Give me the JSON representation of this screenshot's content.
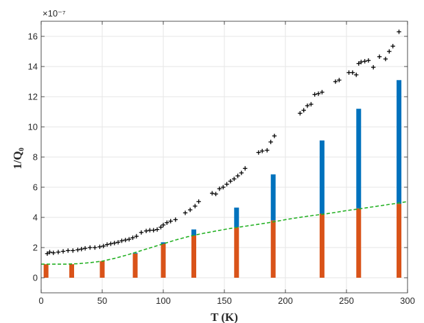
{
  "chart_data": {
    "type": "bar",
    "title": "",
    "xlabel": "T (K)",
    "ylabel": "1/Q₀",
    "exponent_label": "×10⁻⁷",
    "xlim": [
      0,
      300
    ],
    "ylim": [
      -1,
      17
    ],
    "xticks": [
      0,
      50,
      100,
      150,
      200,
      250,
      300
    ],
    "yticks": [
      0,
      2,
      4,
      6,
      8,
      10,
      12,
      14,
      16
    ],
    "grid": true,
    "legend": "none",
    "colors": {
      "orange": "#d95319",
      "blue": "#0072bd",
      "green_dashed": "#22b022",
      "markers": "#000000"
    },
    "bar_x": [
      4,
      25,
      50,
      77,
      100,
      125,
      160,
      190,
      230,
      260,
      293
    ],
    "series": [
      {
        "values": [
          0.9,
          0.9,
          1.1,
          1.6,
          2.25,
          2.8,
          3.35,
          3.8,
          4.25,
          4.6,
          4.9
        ]
      },
      {
        "values": [
          0.0,
          0.0,
          0.0,
          0.05,
          0.1,
          0.4,
          1.3,
          3.05,
          4.85,
          6.6,
          8.2
        ]
      }
    ],
    "dashed_line": {
      "x": [
        0,
        10,
        20,
        30,
        40,
        50,
        60,
        70,
        80,
        90,
        100,
        110,
        120,
        130,
        140,
        150,
        160,
        170,
        180,
        190,
        200,
        210,
        220,
        230,
        240,
        250,
        260,
        270,
        280,
        290,
        300
      ],
      "y": [
        0.9,
        0.9,
        0.9,
        0.93,
        1.0,
        1.1,
        1.28,
        1.5,
        1.75,
        2.0,
        2.25,
        2.5,
        2.72,
        2.9,
        3.05,
        3.2,
        3.33,
        3.45,
        3.57,
        3.7,
        3.85,
        3.98,
        4.1,
        4.2,
        4.32,
        4.45,
        4.56,
        4.68,
        4.8,
        4.92,
        5.05
      ]
    },
    "scatter": {
      "x": [
        5,
        7,
        10,
        14,
        18,
        22,
        26,
        30,
        33,
        36,
        40,
        44,
        48,
        51,
        54,
        57,
        60,
        63,
        66,
        69,
        72,
        75,
        78,
        82,
        86,
        89,
        92,
        95,
        98,
        100,
        103,
        106,
        110,
        118,
        122,
        126,
        129,
        140,
        143,
        146,
        149,
        152,
        155,
        158,
        161,
        164,
        167,
        178,
        181,
        185,
        188,
        191,
        212,
        215,
        218,
        221,
        224,
        227,
        230,
        241,
        244,
        252,
        255,
        258,
        260,
        262,
        265,
        268,
        272,
        277,
        282,
        285,
        288,
        293
      ],
      "y": [
        1.6,
        1.7,
        1.65,
        1.7,
        1.75,
        1.8,
        1.8,
        1.85,
        1.9,
        1.95,
        2.0,
        2.0,
        2.05,
        2.1,
        2.2,
        2.25,
        2.3,
        2.35,
        2.45,
        2.5,
        2.55,
        2.65,
        2.75,
        3.0,
        3.1,
        3.15,
        3.15,
        3.2,
        3.35,
        3.5,
        3.65,
        3.75,
        3.85,
        4.3,
        4.5,
        4.75,
        5.05,
        5.6,
        5.55,
        5.9,
        6.0,
        6.2,
        6.4,
        6.55,
        6.75,
        6.95,
        7.25,
        8.3,
        8.4,
        8.45,
        9.0,
        9.4,
        10.9,
        11.1,
        11.4,
        11.5,
        12.15,
        12.2,
        12.3,
        13.0,
        13.1,
        13.6,
        13.6,
        13.45,
        14.2,
        14.3,
        14.35,
        14.4,
        13.95,
        14.65,
        14.5,
        15.0,
        15.35,
        16.3
      ]
    }
  }
}
